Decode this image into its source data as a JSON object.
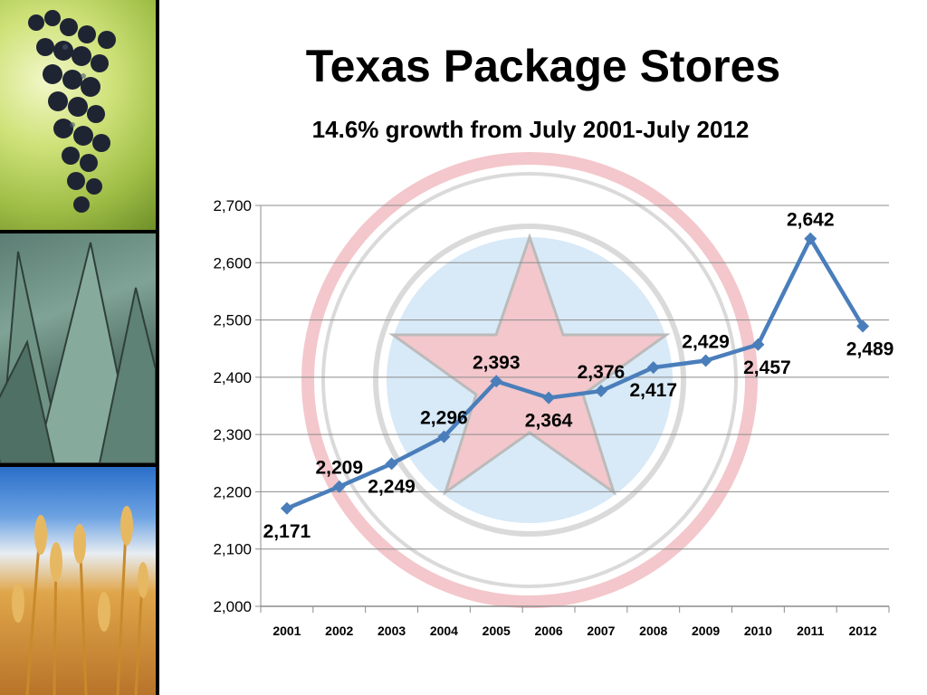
{
  "title": "Texas Package Stores",
  "subtitle": "14.6% growth from July 2001-July 2012",
  "colors": {
    "line": "#4A7EBB",
    "grid": "#8C8C8C",
    "seal_red": "#d94a55",
    "seal_blue": "#7fb7e6"
  },
  "chart_data": {
    "type": "line",
    "title": "",
    "xlabel": "",
    "ylabel": "",
    "categories": [
      "2001",
      "2002",
      "2003",
      "2004",
      "2005",
      "2006",
      "2007",
      "2008",
      "2009",
      "2010",
      "2011",
      "2012"
    ],
    "series": [
      {
        "values": [
          2171,
          2209,
          2249,
          2296,
          2393,
          2364,
          2376,
          2417,
          2429,
          2457,
          2642,
          2489
        ]
      }
    ],
    "data_labels": [
      "2,171",
      "2,209",
      "2,249",
      "2,296",
      "2,393",
      "2,364",
      "2,376",
      "2,417",
      "2,429",
      "2,457",
      "2,642",
      "2,489"
    ],
    "label_positions": [
      "below",
      "above",
      "below",
      "above",
      "above",
      "below",
      "above",
      "below",
      "above",
      "below",
      "above",
      "below"
    ],
    "ylim": [
      2000,
      2700
    ],
    "yticks": [
      2000,
      2100,
      2200,
      2300,
      2400,
      2500,
      2600,
      2700
    ],
    "ytick_labels": [
      "2,000",
      "2,100",
      "2,200",
      "2,300",
      "2,400",
      "2,500",
      "2,600",
      "2,700"
    ],
    "grid": true,
    "legend": "none",
    "marker": "diamond"
  }
}
